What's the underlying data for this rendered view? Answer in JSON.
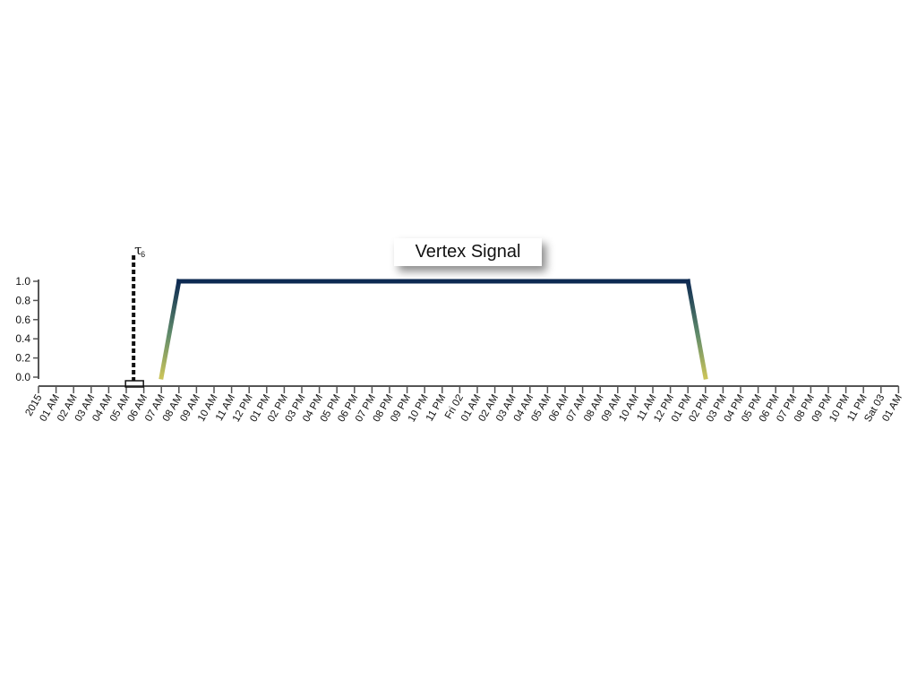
{
  "chart_data": {
    "type": "line",
    "title": "Vertex Signal",
    "xlabel": "",
    "ylabel": "",
    "x_tick_labels": [
      "2015",
      "01 AM",
      "02 AM",
      "03 AM",
      "04 AM",
      "05 AM",
      "06 AM",
      "07 AM",
      "08 AM",
      "09 AM",
      "10 AM",
      "11 AM",
      "12 PM",
      "01 PM",
      "02 PM",
      "03 PM",
      "04 PM",
      "05 PM",
      "06 PM",
      "07 PM",
      "08 PM",
      "09 PM",
      "10 PM",
      "11 PM",
      "Fri 02",
      "01 AM",
      "02 AM",
      "03 AM",
      "04 AM",
      "05 AM",
      "06 AM",
      "07 AM",
      "08 AM",
      "09 AM",
      "10 AM",
      "11 AM",
      "12 PM",
      "01 PM",
      "02 PM",
      "03 PM",
      "04 PM",
      "05 PM",
      "06 PM",
      "07 PM",
      "08 PM",
      "09 PM",
      "10 PM",
      "11 PM",
      "Sat 03",
      "01 AM"
    ],
    "y_tick_labels": [
      "0.0",
      "0.2",
      "0.4",
      "0.6",
      "0.8",
      "1.0"
    ],
    "ylim": [
      0,
      1
    ],
    "xlim": [
      "2015-01-01 00:00",
      "2015-01-03 01:00"
    ],
    "series": [
      {
        "x": [
          "2015-01-01 00:00",
          "2015-01-01 07:00",
          "2015-01-01 08:00",
          "2015-01-02 13:00",
          "2015-01-02 14:00",
          "2015-01-03 01:00"
        ],
        "y": [
          0,
          0,
          1,
          1,
          0,
          0
        ]
      }
    ],
    "annotations": [
      {
        "label": "τ",
        "subscript": "6",
        "x": "2015-01-01 05:25",
        "style": "dashed vertical line"
      }
    ],
    "grid": false,
    "colors": {
      "line_high": "#0d2a52",
      "line_low": "#7a7a7a",
      "ramp": "#9bb03a",
      "axis": "#555555",
      "marker": "#111111"
    }
  }
}
